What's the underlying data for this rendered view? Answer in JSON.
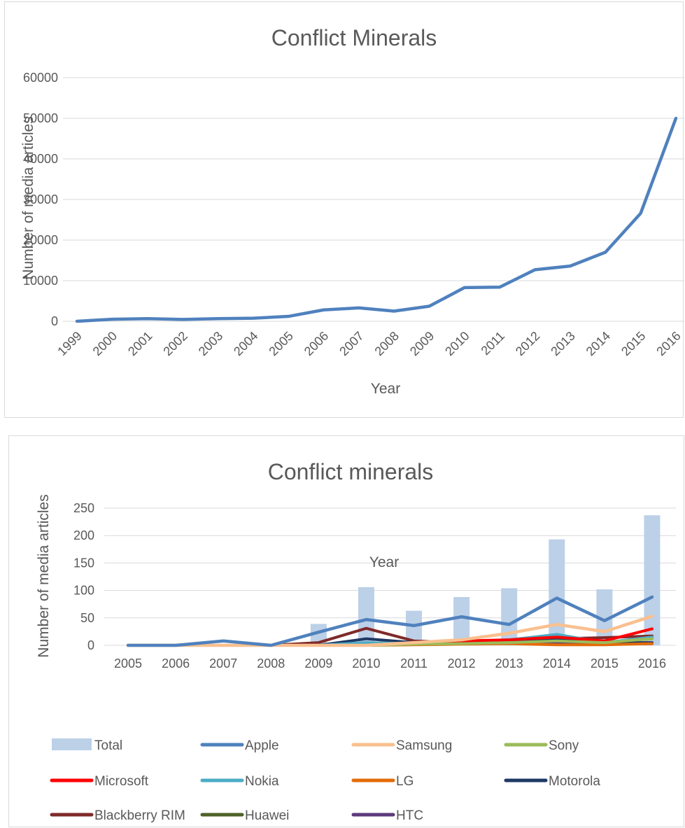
{
  "chart_data": [
    {
      "type": "line",
      "title": "Conflict Minerals",
      "xlabel": "Year",
      "ylabel": "Number of media articles",
      "ylim": [
        0,
        60000
      ],
      "yticks": [
        "0",
        "10000",
        "20000",
        "30000",
        "40000",
        "50000",
        "60000"
      ],
      "grid": true,
      "categories": [
        "1999",
        "2000",
        "2001",
        "2002",
        "2003",
        "2004",
        "2005",
        "2006",
        "2007",
        "2008",
        "2009",
        "2010",
        "2011",
        "2012",
        "2013",
        "2014",
        "2015",
        "2016"
      ],
      "series": [
        {
          "color": "#4f81bd",
          "values": [
            0,
            500,
            650,
            450,
            650,
            750,
            1200,
            2800,
            3300,
            2500,
            3700,
            8300,
            8400,
            12700,
            13600,
            17000,
            26600,
            50000
          ]
        }
      ]
    },
    {
      "type": "bar+line",
      "title": "Conflict minerals",
      "xlabel": "Year",
      "ylabel": "Number of media articles",
      "ylim": [
        0,
        250
      ],
      "yticks": [
        "0",
        "50",
        "100",
        "150",
        "200",
        "250"
      ],
      "grid": true,
      "legend_position": "bottom",
      "categories": [
        "2005",
        "2006",
        "2007",
        "2008",
        "2009",
        "2010",
        "2011",
        "2012",
        "2013",
        "2014",
        "2015",
        "2016"
      ],
      "bars": {
        "name": "Total",
        "color": "#bcd0e8",
        "values": [
          0,
          0,
          0,
          0,
          39,
          106,
          63,
          88,
          104,
          193,
          102,
          237
        ]
      },
      "series": [
        {
          "name": "Apple",
          "color": "#4f81bd",
          "width": 4.5,
          "values": [
            0,
            0,
            8,
            0,
            24,
            47,
            36,
            52,
            38,
            86,
            45,
            88
          ]
        },
        {
          "name": "Samsung",
          "color": "#f9c08f",
          "width": 4.5,
          "values": [
            0,
            0,
            0,
            0,
            0,
            0,
            5,
            10,
            22,
            38,
            25,
            53
          ]
        },
        {
          "name": "Sony",
          "color": "#9bbb59",
          "width": 4,
          "values": [
            0,
            0,
            0,
            0,
            0,
            0,
            2,
            3,
            5,
            8,
            5,
            12
          ]
        },
        {
          "name": "Microsoft",
          "color": "#ff0000",
          "width": 4,
          "values": [
            0,
            0,
            0,
            0,
            0,
            0,
            5,
            8,
            10,
            15,
            8,
            30
          ]
        },
        {
          "name": "Nokia",
          "color": "#4bacc6",
          "width": 4,
          "values": [
            0,
            0,
            0,
            0,
            0,
            5,
            3,
            5,
            10,
            20,
            5,
            15
          ]
        },
        {
          "name": "LG",
          "color": "#e36c09",
          "width": 4,
          "values": [
            0,
            0,
            0,
            0,
            0,
            0,
            1,
            2,
            3,
            1,
            1,
            3
          ]
        },
        {
          "name": "Motorola",
          "color": "#1f3864",
          "width": 4,
          "values": [
            0,
            0,
            0,
            0,
            0,
            12,
            5,
            3,
            8,
            10,
            5,
            5
          ]
        },
        {
          "name": "Blackberry RIM",
          "color": "#7f2a2a",
          "width": 4,
          "values": [
            0,
            0,
            0,
            0,
            5,
            31,
            8,
            5,
            10,
            12,
            14,
            17
          ]
        },
        {
          "name": "Huawei",
          "color": "#4f6228",
          "width": 4,
          "values": [
            0,
            0,
            0,
            0,
            0,
            0,
            2,
            3,
            5,
            12,
            5,
            12
          ]
        },
        {
          "name": "HTC",
          "color": "#5c3a7a",
          "width": 4,
          "values": [
            0,
            0,
            0,
            0,
            0,
            2,
            2,
            3,
            4,
            5,
            2,
            3
          ]
        }
      ]
    }
  ]
}
